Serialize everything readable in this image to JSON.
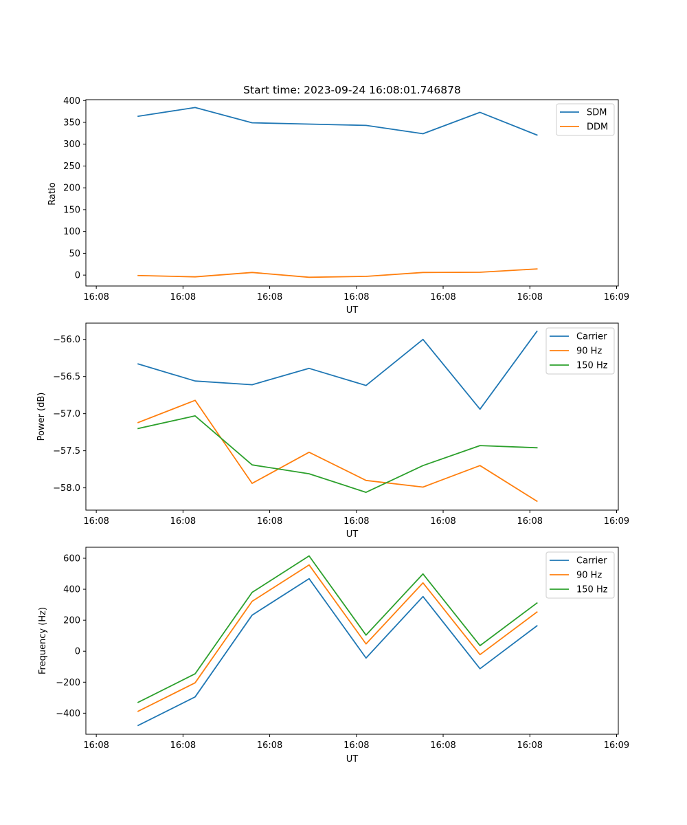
{
  "chart_data": [
    {
      "type": "line",
      "title": "Start time: 2023-09-24 16:08:01.746878",
      "xlabel": "UT",
      "ylabel": "Ratio",
      "x_tick_labels": [
        "16:08",
        "16:08",
        "16:08",
        "16:08",
        "16:08",
        "16:08",
        "16:09"
      ],
      "y_ticks": [
        0,
        50,
        100,
        150,
        200,
        250,
        300,
        350,
        400
      ],
      "ylim": [
        -25,
        402
      ],
      "legend_position": "top-right",
      "x": [
        0.483,
        1.14,
        1.797,
        2.454,
        3.111,
        3.768,
        4.425,
        5.082
      ],
      "xlim": [
        -0.12,
        6.02
      ],
      "series": [
        {
          "name": "SDM",
          "color": "#1f77b4",
          "values": [
            364,
            384,
            349,
            346,
            343,
            324,
            373,
            321
          ]
        },
        {
          "name": "DDM",
          "color": "#ff7f0e",
          "values": [
            -1,
            -4,
            6,
            -5,
            -3,
            6,
            6.5,
            14
          ]
        }
      ]
    },
    {
      "type": "line",
      "title": "",
      "xlabel": "UT",
      "ylabel": "Power (dB)",
      "x_tick_labels": [
        "16:08",
        "16:08",
        "16:08",
        "16:08",
        "16:08",
        "16:08",
        "16:09"
      ],
      "y_ticks": [
        -58.0,
        -57.5,
        -57.0,
        -56.5,
        -56.0
      ],
      "y_tick_labels": [
        "−58.0",
        "−57.5",
        "−57.0",
        "−56.5",
        "−56.0"
      ],
      "ylim": [
        -58.3,
        -55.78
      ],
      "legend_position": "top-right",
      "x": [
        0.483,
        1.14,
        1.797,
        2.454,
        3.111,
        3.768,
        4.425,
        5.082
      ],
      "xlim": [
        -0.12,
        6.02
      ],
      "series": [
        {
          "name": "Carrier",
          "color": "#1f77b4",
          "values": [
            -56.33,
            -56.56,
            -56.61,
            -56.39,
            -56.62,
            -56.0,
            -56.94,
            -55.89
          ]
        },
        {
          "name": "90 Hz",
          "color": "#ff7f0e",
          "values": [
            -57.12,
            -56.82,
            -57.94,
            -57.52,
            -57.9,
            -57.99,
            -57.7,
            -58.18
          ]
        },
        {
          "name": "150 Hz",
          "color": "#2ca02c",
          "values": [
            -57.2,
            -57.03,
            -57.69,
            -57.81,
            -58.06,
            -57.7,
            -57.43,
            -57.46
          ]
        }
      ]
    },
    {
      "type": "line",
      "title": "",
      "xlabel": "UT",
      "ylabel": "Frequency (Hz)",
      "x_tick_labels": [
        "16:08",
        "16:08",
        "16:08",
        "16:08",
        "16:08",
        "16:08",
        "16:09"
      ],
      "y_ticks": [
        -400,
        -200,
        0,
        200,
        400,
        600
      ],
      "y_tick_labels": [
        "−400",
        "−200",
        "0",
        "200",
        "400",
        "600"
      ],
      "ylim": [
        -536,
        671
      ],
      "legend_position": "top-right",
      "x": [
        0.483,
        1.14,
        1.797,
        2.454,
        3.111,
        3.768,
        4.425,
        5.082
      ],
      "xlim": [
        -0.12,
        6.02
      ],
      "series": [
        {
          "name": "Carrier",
          "color": "#1f77b4",
          "values": [
            -479,
            -295,
            233,
            468,
            -44,
            353,
            -113,
            164
          ]
        },
        {
          "name": "90 Hz",
          "color": "#ff7f0e",
          "values": [
            -388,
            -204,
            322,
            557,
            47,
            441,
            -22,
            253
          ]
        },
        {
          "name": "150 Hz",
          "color": "#2ca02c",
          "values": [
            -330,
            -146,
            380,
            615,
            104,
            499,
            36,
            311
          ]
        }
      ]
    }
  ]
}
